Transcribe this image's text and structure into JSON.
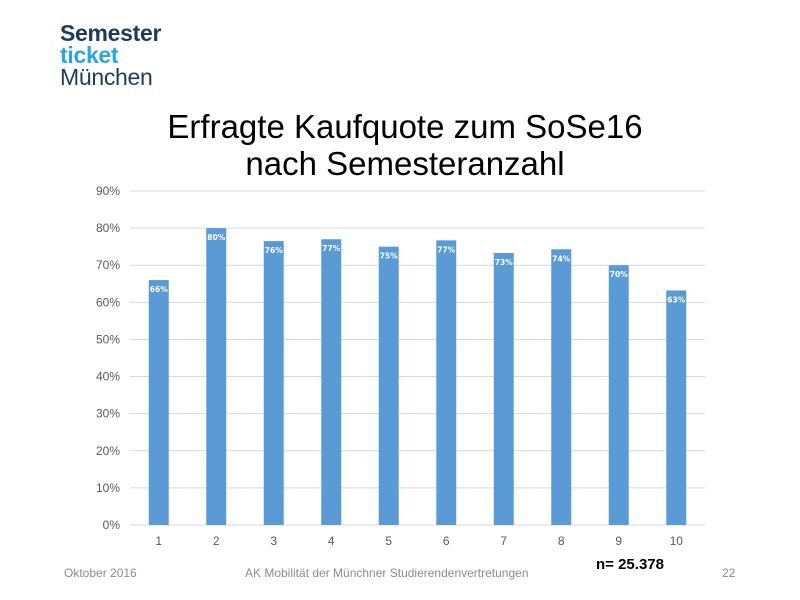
{
  "logo": {
    "line1": "Semester",
    "line2": "ticket",
    "line3": "München"
  },
  "colors": {
    "bar": "#5b9bd5",
    "grid": "#d9d9d9",
    "logo_dark": "#1f3b5a",
    "logo_accent": "#2aa6df"
  },
  "footer": {
    "date": "Oktober 2016",
    "organization": "AK Mobilität der Münchner  Studierendenvertretungen",
    "page_number": "22",
    "sample_size": "n= 25.378"
  },
  "chart_data": {
    "type": "bar",
    "title": "Erfragte Kaufquote zum SoSe16 nach Semesteranzahl",
    "title_lines": [
      "Erfragte Kaufquote zum SoSe16",
      "nach Semesteranzahl"
    ],
    "categories": [
      "1",
      "2",
      "3",
      "4",
      "5",
      "6",
      "7",
      "8",
      "9",
      "10"
    ],
    "values": [
      66,
      80,
      76.5,
      77,
      75,
      76.7,
      73.3,
      74.3,
      70,
      63.2
    ],
    "data_labels": [
      "66%",
      "80%",
      "76%",
      "77%",
      "75%",
      "77%",
      "73%",
      "74%",
      "70%",
      "63%"
    ],
    "ylim": [
      0,
      90
    ],
    "y_ticks": [
      0,
      10,
      20,
      30,
      40,
      50,
      60,
      70,
      80,
      90
    ],
    "y_tick_labels": [
      "0%",
      "10%",
      "20%",
      "30%",
      "40%",
      "50%",
      "60%",
      "70%",
      "80%",
      "90%"
    ],
    "xlabel": "",
    "ylabel": "",
    "grid": true,
    "legend": "none"
  }
}
